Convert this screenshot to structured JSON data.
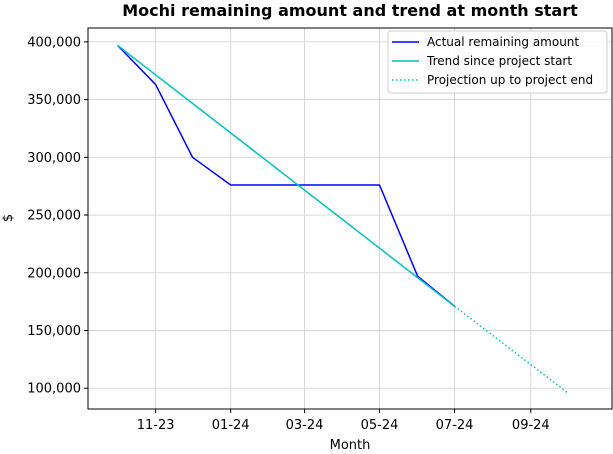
{
  "chart_data": {
    "type": "line",
    "title": "Mochi remaining amount and trend at month start",
    "xlabel": "Month",
    "ylabel": "$",
    "x_tick_labels": [
      "11-23",
      "01-24",
      "03-24",
      "05-24",
      "07-24",
      "09-24"
    ],
    "x_tick_dates": [
      "2023-11-01",
      "2024-01-01",
      "2024-03-01",
      "2024-05-01",
      "2024-07-01",
      "2024-09-01"
    ],
    "xlim": [
      "2023-09-07",
      "2024-11-06"
    ],
    "y_tick_labels": [
      "100,000",
      "150,000",
      "200,000",
      "250,000",
      "300,000",
      "350,000",
      "400,000"
    ],
    "y_ticks": [
      100000,
      150000,
      200000,
      250000,
      300000,
      350000,
      400000
    ],
    "ylim": [
      82000,
      412000
    ],
    "grid": true,
    "legend_position": "upper right",
    "series": [
      {
        "name": "Actual remaining amount",
        "color": "#0000ff",
        "style": "solid",
        "points": [
          {
            "x": "2023-10-01",
            "y": 397000
          },
          {
            "x": "2023-11-01",
            "y": 363000
          },
          {
            "x": "2023-12-01",
            "y": 300000
          },
          {
            "x": "2024-01-01",
            "y": 276000
          },
          {
            "x": "2024-02-01",
            "y": 276000
          },
          {
            "x": "2024-03-01",
            "y": 276000
          },
          {
            "x": "2024-04-01",
            "y": 276000
          },
          {
            "x": "2024-05-01",
            "y": 276000
          },
          {
            "x": "2024-06-01",
            "y": 197000
          },
          {
            "x": "2024-07-01",
            "y": 171000
          }
        ]
      },
      {
        "name": "Trend since project start",
        "color": "#00bfbf",
        "style": "solid",
        "points": [
          {
            "x": "2023-10-01",
            "y": 397000
          },
          {
            "x": "2024-07-01",
            "y": 171000
          }
        ]
      },
      {
        "name": "Projection up to project end",
        "color": "#00bfbf",
        "style": "dotted",
        "points": [
          {
            "x": "2024-07-01",
            "y": 171000
          },
          {
            "x": "2024-10-01",
            "y": 96000
          }
        ]
      }
    ]
  }
}
